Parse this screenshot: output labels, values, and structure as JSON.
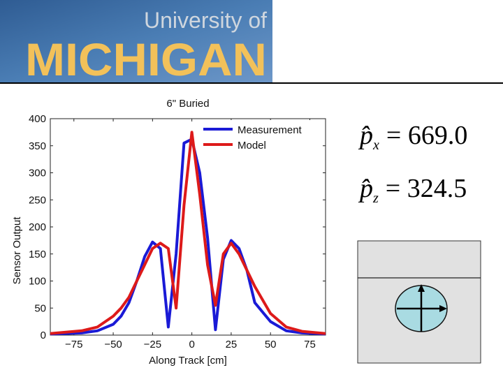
{
  "banner": {
    "line1": "University of",
    "line2": "MICHIGAN"
  },
  "colors": {
    "measurement": "#1a1ad6",
    "model": "#dd1a1a",
    "bannerBlue": "#3e6ea6",
    "bannerGold": "#f2c15a"
  },
  "chart_data": {
    "type": "line",
    "title": "6\" Buried",
    "xlabel": "Along Track [cm]",
    "ylabel": "Sensor Output",
    "xlim": [
      -90,
      85
    ],
    "ylim": [
      0,
      400
    ],
    "xticks": [
      -75,
      -50,
      -25,
      0,
      25,
      50,
      75
    ],
    "yticks": [
      0,
      50,
      100,
      150,
      200,
      250,
      300,
      350,
      400
    ],
    "grid": false,
    "legend": "top-right",
    "series": [
      {
        "name": "Measurement",
        "x": [
          -90,
          -70,
          -60,
          -50,
          -45,
          -40,
          -35,
          -30,
          -25,
          -20,
          -15,
          -10,
          -5,
          0,
          5,
          10,
          15,
          20,
          25,
          30,
          35,
          40,
          50,
          60,
          70,
          85
        ],
        "y": [
          2,
          4,
          8,
          20,
          35,
          60,
          100,
          145,
          172,
          160,
          15,
          150,
          355,
          362,
          300,
          180,
          10,
          140,
          175,
          160,
          120,
          60,
          25,
          8,
          4,
          2
        ]
      },
      {
        "name": "Model",
        "x": [
          -90,
          -70,
          -60,
          -50,
          -45,
          -40,
          -35,
          -30,
          -25,
          -20,
          -15,
          -10,
          -5,
          0,
          5,
          10,
          15,
          20,
          25,
          30,
          35,
          40,
          50,
          60,
          70,
          85
        ],
        "y": [
          3,
          8,
          15,
          35,
          50,
          70,
          100,
          130,
          160,
          170,
          160,
          50,
          240,
          375,
          260,
          130,
          55,
          150,
          170,
          150,
          120,
          90,
          40,
          15,
          7,
          3
        ]
      }
    ]
  },
  "equations": [
    {
      "symbol": "p̂",
      "sub": "x",
      "value": "= 669.0"
    },
    {
      "symbol": "p̂",
      "sub": "z",
      "value": "= 324.5"
    }
  ]
}
